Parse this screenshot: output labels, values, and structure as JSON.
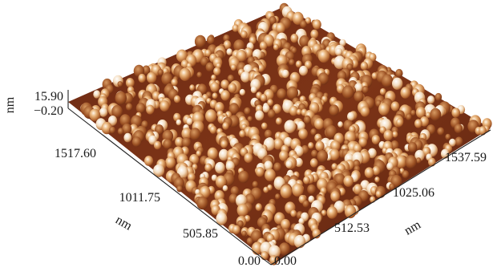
{
  "chart_data": {
    "type": "surface-3d",
    "x_axis": {
      "label": "nm",
      "range": [
        0.0,
        2050.12
      ],
      "tick_labels": [
        "0.00",
        "512.53",
        "1025.06",
        "1537.59"
      ]
    },
    "y_axis": {
      "label": "nm",
      "range": [
        0.0,
        2023.45
      ],
      "tick_labels": [
        "0.00",
        "505.85",
        "1011.75",
        "1517.60"
      ]
    },
    "z_axis": {
      "label": "nm",
      "range": [
        -0.2,
        15.9
      ],
      "tick_labels": [
        "-0.20",
        "15.90"
      ],
      "tick_text": [
        "−0.20",
        "15.90"
      ]
    },
    "colors": {
      "low": "#5a1f0d",
      "mid": "#a45a2a",
      "high": "#ffffff"
    }
  }
}
